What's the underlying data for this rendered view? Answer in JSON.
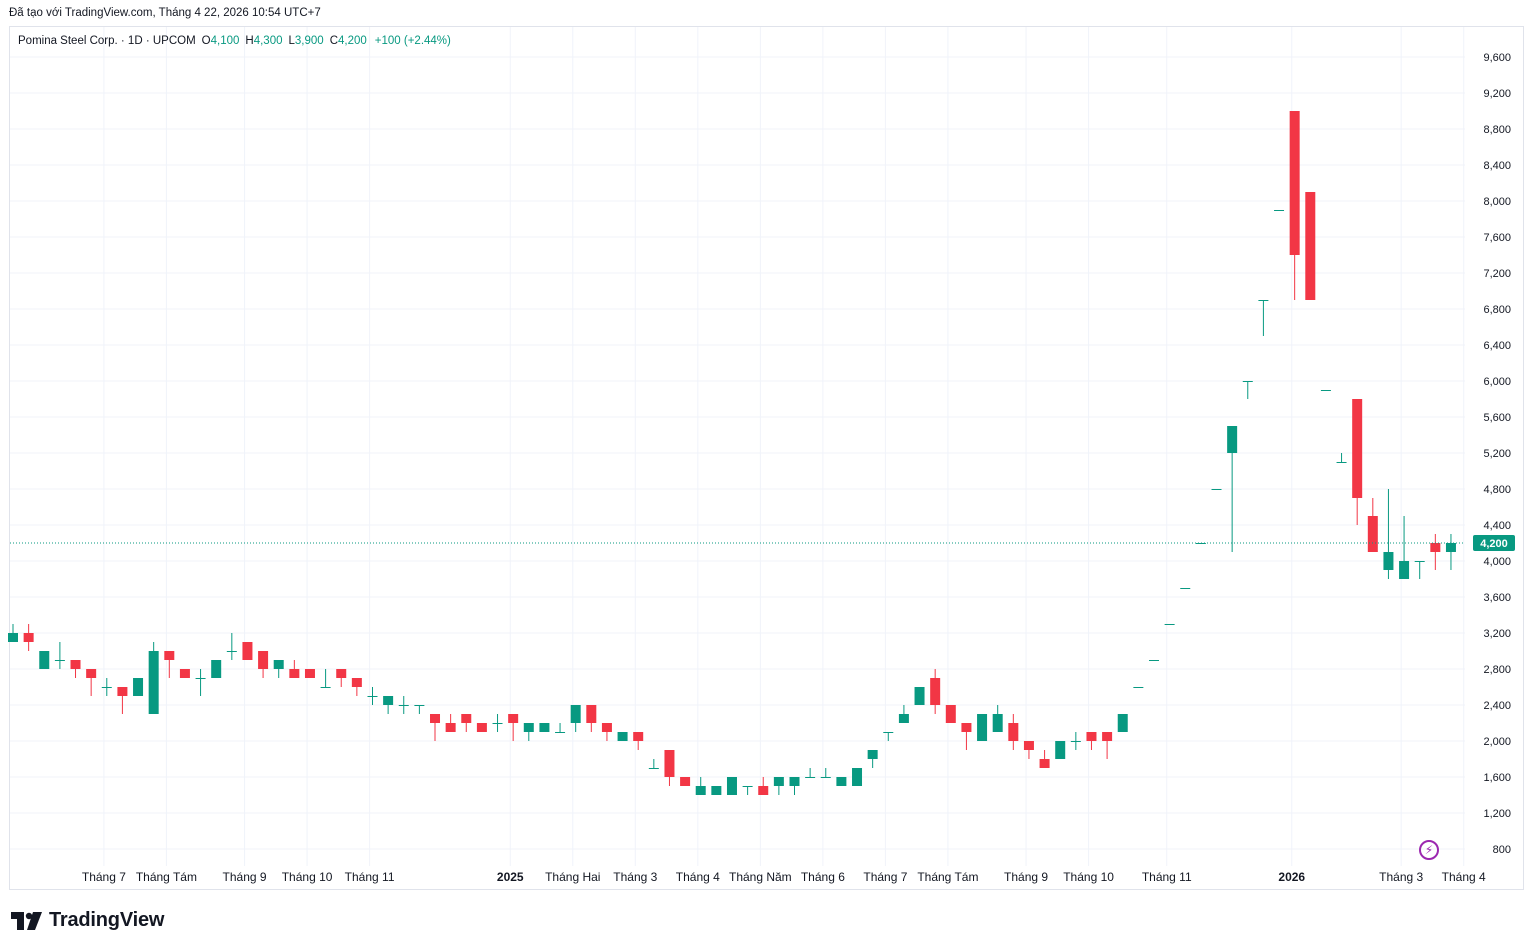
{
  "header": {
    "created_text": "Đã tạo với TradingView.com, Tháng 4 22, 2026 10:54 UTC+7"
  },
  "legend": {
    "symbol": "Pomina Steel Corp. · 1D · UPCOM",
    "o_label": "O",
    "o_value": "4,100",
    "h_label": "H",
    "h_value": "4,300",
    "l_label": "L",
    "l_value": "3,900",
    "c_label": "C",
    "c_value": "4,200",
    "change": "+100 (+2.44%)"
  },
  "footer": {
    "brand": "TradingView",
    "logo_icon": "tradingview-logo-icon"
  },
  "colors": {
    "up": "#089981",
    "down": "#f23645",
    "grid": "#f0f3fa",
    "last_price_bg": "#089981",
    "accent": "#9c27b0"
  },
  "chart_data": {
    "type": "candlestick",
    "title": "Pomina Steel Corp. · 1D · UPCOM",
    "ylim": [
      800,
      9800
    ],
    "y_ticks": [
      800,
      1200,
      1600,
      2000,
      2400,
      2800,
      3200,
      3600,
      4000,
      4400,
      4800,
      5200,
      5600,
      6000,
      6400,
      6800,
      7200,
      7600,
      8000,
      8400,
      8800,
      9200,
      9600
    ],
    "y_tick_labels": [
      "800",
      "1,200",
      "1,600",
      "2,000",
      "2,400",
      "2,800",
      "3,200",
      "3,600",
      "4,000",
      "4,400",
      "4,800",
      "5,200",
      "5,600",
      "6,000",
      "6,400",
      "6,800",
      "7,200",
      "7,600",
      "8,000",
      "8,400",
      "8,800",
      "9,200",
      "9,600"
    ],
    "x_labels": [
      {
        "text": "Tháng 7",
        "index": 3,
        "bold": false
      },
      {
        "text": "Tháng Tám",
        "index": 7,
        "bold": false
      },
      {
        "text": "Tháng 9",
        "index": 12,
        "bold": false
      },
      {
        "text": "Tháng 10",
        "index": 16,
        "bold": false
      },
      {
        "text": "Tháng 11",
        "index": 20,
        "bold": false
      },
      {
        "text": "2025",
        "index": 29,
        "bold": true
      },
      {
        "text": "Tháng Hai",
        "index": 33,
        "bold": false
      },
      {
        "text": "Tháng 3",
        "index": 37,
        "bold": false
      },
      {
        "text": "Tháng 4",
        "index": 41,
        "bold": false
      },
      {
        "text": "Tháng Năm",
        "index": 45,
        "bold": false
      },
      {
        "text": "Tháng 6",
        "index": 49,
        "bold": false
      },
      {
        "text": "Tháng 7",
        "index": 53,
        "bold": false
      },
      {
        "text": "Tháng Tám",
        "index": 57,
        "bold": false
      },
      {
        "text": "Tháng 9",
        "index": 62,
        "bold": false
      },
      {
        "text": "Tháng 10",
        "index": 66,
        "bold": false
      },
      {
        "text": "Tháng 11",
        "index": 71,
        "bold": false
      },
      {
        "text": "2026",
        "index": 79,
        "bold": true
      },
      {
        "text": "Tháng 3",
        "index": 86,
        "bold": false
      },
      {
        "text": "Tháng 4",
        "index": 90,
        "bold": false
      }
    ],
    "last_price": 4200,
    "last_price_label": "4,200",
    "candles": [
      {
        "o": 3100,
        "h": 3300,
        "l": 3100,
        "c": 3200
      },
      {
        "o": 3200,
        "h": 3300,
        "l": 3000,
        "c": 3100
      },
      {
        "o": 2800,
        "h": 3000,
        "l": 2800,
        "c": 3000
      },
      {
        "o": 2900,
        "h": 3100,
        "l": 2800,
        "c": 2900
      },
      {
        "o": 2900,
        "h": 2900,
        "l": 2700,
        "c": 2800
      },
      {
        "o": 2800,
        "h": 2800,
        "l": 2500,
        "c": 2700
      },
      {
        "o": 2600,
        "h": 2700,
        "l": 2500,
        "c": 2600
      },
      {
        "o": 2600,
        "h": 2600,
        "l": 2300,
        "c": 2500
      },
      {
        "o": 2500,
        "h": 2700,
        "l": 2500,
        "c": 2700
      },
      {
        "o": 2300,
        "h": 3100,
        "l": 2300,
        "c": 3000
      },
      {
        "o": 3000,
        "h": 3000,
        "l": 2700,
        "c": 2900
      },
      {
        "o": 2800,
        "h": 2800,
        "l": 2700,
        "c": 2700
      },
      {
        "o": 2700,
        "h": 2800,
        "l": 2500,
        "c": 2700
      },
      {
        "o": 2700,
        "h": 2900,
        "l": 2700,
        "c": 2900
      },
      {
        "o": 3000,
        "h": 3200,
        "l": 2900,
        "c": 3000
      },
      {
        "o": 3100,
        "h": 3100,
        "l": 2900,
        "c": 2900
      },
      {
        "o": 3000,
        "h": 3000,
        "l": 2700,
        "c": 2800
      },
      {
        "o": 2800,
        "h": 2900,
        "l": 2700,
        "c": 2900
      },
      {
        "o": 2800,
        "h": 2900,
        "l": 2700,
        "c": 2700
      },
      {
        "o": 2800,
        "h": 2800,
        "l": 2700,
        "c": 2700
      },
      {
        "o": 2600,
        "h": 2800,
        "l": 2600,
        "c": 2600
      },
      {
        "o": 2800,
        "h": 2800,
        "l": 2600,
        "c": 2700
      },
      {
        "o": 2700,
        "h": 2700,
        "l": 2500,
        "c": 2600
      },
      {
        "o": 2500,
        "h": 2600,
        "l": 2400,
        "c": 2500
      },
      {
        "o": 2400,
        "h": 2500,
        "l": 2300,
        "c": 2500
      },
      {
        "o": 2400,
        "h": 2500,
        "l": 2300,
        "c": 2400
      },
      {
        "o": 2400,
        "h": 2400,
        "l": 2300,
        "c": 2400
      },
      {
        "o": 2300,
        "h": 2300,
        "l": 2000,
        "c": 2200
      },
      {
        "o": 2200,
        "h": 2300,
        "l": 2100,
        "c": 2100
      },
      {
        "o": 2300,
        "h": 2300,
        "l": 2100,
        "c": 2200
      },
      {
        "o": 2200,
        "h": 2200,
        "l": 2100,
        "c": 2100
      },
      {
        "o": 2200,
        "h": 2300,
        "l": 2100,
        "c": 2200
      },
      {
        "o": 2300,
        "h": 2300,
        "l": 2000,
        "c": 2200
      },
      {
        "o": 2100,
        "h": 2200,
        "l": 2000,
        "c": 2200
      },
      {
        "o": 2100,
        "h": 2200,
        "l": 2100,
        "c": 2200
      },
      {
        "o": 2100,
        "h": 2200,
        "l": 2100,
        "c": 2100
      },
      {
        "o": 2200,
        "h": 2400,
        "l": 2100,
        "c": 2400
      },
      {
        "o": 2400,
        "h": 2400,
        "l": 2100,
        "c": 2200
      },
      {
        "o": 2200,
        "h": 2200,
        "l": 2000,
        "c": 2100
      },
      {
        "o": 2000,
        "h": 2100,
        "l": 2000,
        "c": 2100
      },
      {
        "o": 2100,
        "h": 2100,
        "l": 1900,
        "c": 2000
      },
      {
        "o": 1700,
        "h": 1800,
        "l": 1700,
        "c": 1700
      },
      {
        "o": 1900,
        "h": 1900,
        "l": 1500,
        "c": 1600
      },
      {
        "o": 1600,
        "h": 1600,
        "l": 1500,
        "c": 1500
      },
      {
        "o": 1400,
        "h": 1600,
        "l": 1400,
        "c": 1500
      },
      {
        "o": 1400,
        "h": 1500,
        "l": 1400,
        "c": 1500
      },
      {
        "o": 1400,
        "h": 1600,
        "l": 1400,
        "c": 1600
      },
      {
        "o": 1500,
        "h": 1500,
        "l": 1400,
        "c": 1500
      },
      {
        "o": 1500,
        "h": 1600,
        "l": 1400,
        "c": 1400
      },
      {
        "o": 1500,
        "h": 1600,
        "l": 1400,
        "c": 1600
      },
      {
        "o": 1500,
        "h": 1600,
        "l": 1400,
        "c": 1600
      },
      {
        "o": 1600,
        "h": 1700,
        "l": 1600,
        "c": 1600
      },
      {
        "o": 1600,
        "h": 1700,
        "l": 1600,
        "c": 1600
      },
      {
        "o": 1500,
        "h": 1600,
        "l": 1500,
        "c": 1600
      },
      {
        "o": 1500,
        "h": 1700,
        "l": 1500,
        "c": 1700
      },
      {
        "o": 1800,
        "h": 1900,
        "l": 1700,
        "c": 1900
      },
      {
        "o": 2100,
        "h": 2100,
        "l": 2000,
        "c": 2100
      },
      {
        "o": 2200,
        "h": 2400,
        "l": 2200,
        "c": 2300
      },
      {
        "o": 2400,
        "h": 2600,
        "l": 2400,
        "c": 2600
      },
      {
        "o": 2700,
        "h": 2800,
        "l": 2300,
        "c": 2400
      },
      {
        "o": 2400,
        "h": 2400,
        "l": 2200,
        "c": 2200
      },
      {
        "o": 2200,
        "h": 2200,
        "l": 1900,
        "c": 2100
      },
      {
        "o": 2000,
        "h": 2300,
        "l": 2000,
        "c": 2300
      },
      {
        "o": 2100,
        "h": 2400,
        "l": 2100,
        "c": 2300
      },
      {
        "o": 2200,
        "h": 2300,
        "l": 1900,
        "c": 2000
      },
      {
        "o": 2000,
        "h": 2000,
        "l": 1800,
        "c": 1900
      },
      {
        "o": 1800,
        "h": 1900,
        "l": 1700,
        "c": 1700
      },
      {
        "o": 1800,
        "h": 2000,
        "l": 1800,
        "c": 2000
      },
      {
        "o": 2000,
        "h": 2100,
        "l": 1900,
        "c": 2000
      },
      {
        "o": 2100,
        "h": 2100,
        "l": 1900,
        "c": 2000
      },
      {
        "o": 2100,
        "h": 2100,
        "l": 1800,
        "c": 2000
      },
      {
        "o": 2100,
        "h": 2300,
        "l": 2100,
        "c": 2300
      },
      {
        "o": 2600,
        "h": 2600,
        "l": 2600,
        "c": 2600
      },
      {
        "o": 2900,
        "h": 2900,
        "l": 2900,
        "c": 2900
      },
      {
        "o": 3300,
        "h": 3300,
        "l": 3300,
        "c": 3300
      },
      {
        "o": 3700,
        "h": 3700,
        "l": 3700,
        "c": 3700
      },
      {
        "o": 4200,
        "h": 4200,
        "l": 4200,
        "c": 4200
      },
      {
        "o": 4800,
        "h": 4800,
        "l": 4800,
        "c": 4800
      },
      {
        "o": 5200,
        "h": 5500,
        "l": 4100,
        "c": 5500
      },
      {
        "o": 6000,
        "h": 6000,
        "l": 5800,
        "c": 6000
      },
      {
        "o": 6900,
        "h": 6900,
        "l": 6500,
        "c": 6900
      },
      {
        "o": 7900,
        "h": 7900,
        "l": 7900,
        "c": 7900
      },
      {
        "o": 9000,
        "h": 9000,
        "l": 6900,
        "c": 7400
      },
      {
        "o": 8100,
        "h": 8100,
        "l": 6900,
        "c": 6900
      },
      {
        "o": 5900,
        "h": 5900,
        "l": 5900,
        "c": 5900
      },
      {
        "o": 5100,
        "h": 5200,
        "l": 5100,
        "c": 5100
      },
      {
        "o": 5800,
        "h": 5800,
        "l": 4400,
        "c": 4700
      },
      {
        "o": 4500,
        "h": 4700,
        "l": 4100,
        "c": 4100
      },
      {
        "o": 3900,
        "h": 4800,
        "l": 3800,
        "c": 4100
      },
      {
        "o": 3800,
        "h": 4500,
        "l": 3800,
        "c": 4000
      },
      {
        "o": 4000,
        "h": 4000,
        "l": 3800,
        "c": 4000
      },
      {
        "o": 4200,
        "h": 4300,
        "l": 3900,
        "c": 4100
      },
      {
        "o": 4100,
        "h": 4300,
        "l": 3900,
        "c": 4200
      }
    ]
  }
}
